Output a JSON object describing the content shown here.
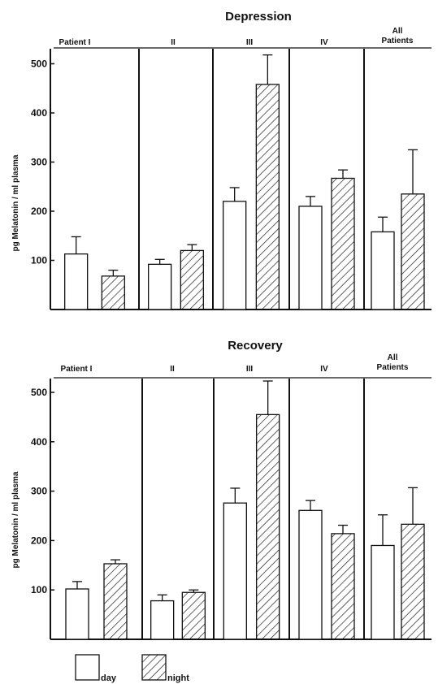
{
  "chart_data": [
    {
      "type": "bar",
      "title": "Depression",
      "ylabel": "pg Melatonin / ml plasma",
      "xlabel": "",
      "categories": [
        "Patient I",
        "II",
        "III",
        "IV",
        "All Patients"
      ],
      "yticks": [
        100,
        200,
        300,
        400,
        500
      ],
      "ylim": [
        0,
        550
      ],
      "series": [
        {
          "name": "day",
          "pattern": "open",
          "values": [
            113,
            92,
            220,
            210,
            158
          ],
          "error": [
            35,
            10,
            28,
            20,
            30
          ]
        },
        {
          "name": "night",
          "pattern": "hatched",
          "values": [
            68,
            120,
            458,
            267,
            235
          ],
          "error": [
            12,
            12,
            60,
            17,
            90
          ]
        }
      ]
    },
    {
      "type": "bar",
      "title": "Recovery",
      "ylabel": "pg Melatonin / ml plasma",
      "xlabel": "",
      "categories": [
        "Patient I",
        "II",
        "III",
        "IV",
        "All Patients"
      ],
      "yticks": [
        100,
        200,
        300,
        400,
        500
      ],
      "ylim": [
        0,
        550
      ],
      "series": [
        {
          "name": "day",
          "pattern": "open",
          "values": [
            102,
            78,
            276,
            261,
            190
          ],
          "error": [
            15,
            12,
            30,
            20,
            62
          ]
        },
        {
          "name": "night",
          "pattern": "hatched",
          "values": [
            153,
            95,
            455,
            214,
            233
          ],
          "error": [
            8,
            5,
            68,
            17,
            74
          ]
        }
      ]
    }
  ],
  "legend": {
    "position": "bottom-left",
    "items": [
      {
        "label": "day",
        "pattern": "open"
      },
      {
        "label": "night",
        "pattern": "hatched"
      }
    ]
  },
  "colors": {
    "ink": "#111111",
    "background": "#ffffff"
  }
}
